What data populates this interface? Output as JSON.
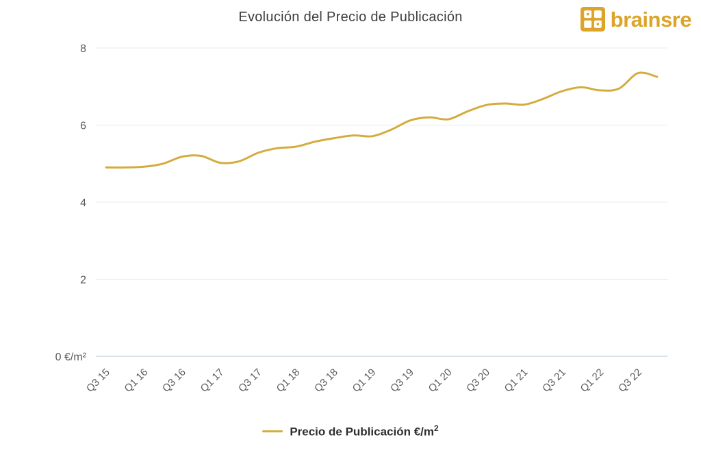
{
  "header": {
    "title": "Evolución del Precio de Publicación",
    "logo_text": "brainsre"
  },
  "colors": {
    "line": "#d4ac3e",
    "brand_gold": "#dca428",
    "grid": "#e8e8e8",
    "axis_zero": "#ccd9e4",
    "axis_text": "#5a5a5a",
    "title_text": "#3d3d3d",
    "legend_text": "#2e2e2e"
  },
  "legend": {
    "label": "Precio de Publicación €/m",
    "sup": "2"
  },
  "chart_data": {
    "type": "line",
    "title": "Evolución del Precio de Publicación",
    "series_name": "Precio de Publicación €/m²",
    "categories": [
      "Q3 15",
      "Q4 15",
      "Q1 16",
      "Q2 16",
      "Q3 16",
      "Q4 16",
      "Q1 17",
      "Q2 17",
      "Q3 17",
      "Q4 17",
      "Q1 18",
      "Q2 18",
      "Q3 18",
      "Q4 18",
      "Q1 19",
      "Q2 19",
      "Q3 19",
      "Q4 19",
      "Q1 20",
      "Q2 20",
      "Q3 20",
      "Q4 20",
      "Q1 21",
      "Q2 21",
      "Q3 21",
      "Q4 21",
      "Q1 22",
      "Q2 22",
      "Q3 22",
      "Q4 22"
    ],
    "values": [
      4.9,
      4.9,
      4.92,
      5.0,
      5.18,
      5.2,
      5.02,
      5.06,
      5.28,
      5.4,
      5.44,
      5.57,
      5.66,
      5.73,
      5.71,
      5.88,
      6.12,
      6.2,
      6.15,
      6.35,
      6.52,
      6.56,
      6.53,
      6.68,
      6.88,
      6.98,
      6.9,
      6.95,
      7.35,
      7.25
    ],
    "xtick_indices": [
      0,
      2,
      4,
      6,
      8,
      10,
      12,
      14,
      16,
      18,
      20,
      22,
      24,
      26,
      28
    ],
    "yticks": [
      {
        "value": 0,
        "label": "0 €/m²"
      },
      {
        "value": 2,
        "label": "2"
      },
      {
        "value": 4,
        "label": "4"
      },
      {
        "value": 6,
        "label": "6"
      },
      {
        "value": 8,
        "label": "8"
      }
    ],
    "ylim": [
      0,
      8
    ],
    "xlabel": "",
    "ylabel": "€/m²",
    "grid": true,
    "legend_position": "bottom"
  }
}
